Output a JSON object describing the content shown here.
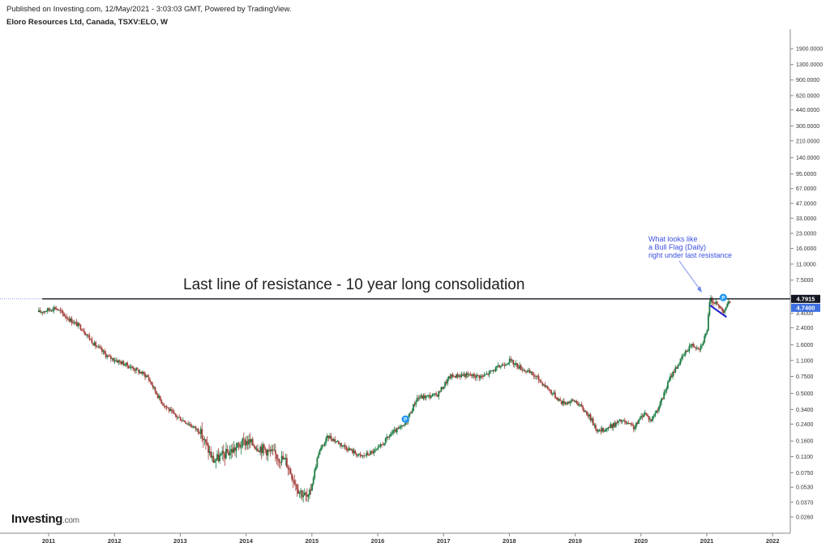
{
  "header": {
    "published": "Published on Investing.com, 12/May/2021 - 3:03:03 GMT, Powered by TradingView.",
    "symbol": "Eloro Resources Ltd, Canada, TSXV:ELO, W"
  },
  "logo": {
    "name": "Investing",
    "suffix": ".com"
  },
  "chart_data": {
    "type": "candlestick",
    "y_scale": "log",
    "ylim": [
      0.021,
      2700
    ],
    "x_ticks": [
      "2011",
      "2012",
      "2013",
      "2014",
      "2015",
      "2016",
      "2017",
      "2018",
      "2019",
      "2020",
      "2021",
      "2022"
    ],
    "y_ticks": [
      {
        "value": 1900,
        "label": "1900.0000"
      },
      {
        "value": 1300,
        "label": "1300.0000"
      },
      {
        "value": 900,
        "label": "900.0000"
      },
      {
        "value": 620,
        "label": "620.0000"
      },
      {
        "value": 440,
        "label": "440.0000"
      },
      {
        "value": 300,
        "label": "300.0000"
      },
      {
        "value": 210,
        "label": "210.0000"
      },
      {
        "value": 140,
        "label": "140.0000"
      },
      {
        "value": 95,
        "label": "95.0000"
      },
      {
        "value": 67,
        "label": "67.0000"
      },
      {
        "value": 47,
        "label": "47.0000"
      },
      {
        "value": 33,
        "label": "33.0000"
      },
      {
        "value": 23,
        "label": "23.0000"
      },
      {
        "value": 16,
        "label": "16.0000"
      },
      {
        "value": 11,
        "label": "11.0000"
      },
      {
        "value": 7.5,
        "label": "7.5000"
      },
      {
        "value": 3.4,
        "label": "3.4000"
      },
      {
        "value": 2.4,
        "label": "2.4000"
      },
      {
        "value": 1.6,
        "label": "1.6000"
      },
      {
        "value": 1.1,
        "label": "1.1000"
      },
      {
        "value": 0.75,
        "label": "0.7500"
      },
      {
        "value": 0.5,
        "label": "0.5000"
      },
      {
        "value": 0.34,
        "label": "0.3400"
      },
      {
        "value": 0.24,
        "label": "0.2400"
      },
      {
        "value": 0.16,
        "label": "0.1600"
      },
      {
        "value": 0.11,
        "label": "0.1100"
      },
      {
        "value": 0.075,
        "label": "0.0750"
      },
      {
        "value": 0.053,
        "label": "0.0530"
      },
      {
        "value": 0.037,
        "label": "0.0370"
      },
      {
        "value": 0.026,
        "label": "0.0260"
      }
    ],
    "price_path": [
      {
        "t": 2010.85,
        "v": 3.5
      },
      {
        "t": 2011.0,
        "v": 3.7
      },
      {
        "t": 2011.1,
        "v": 3.9
      },
      {
        "t": 2011.3,
        "v": 3.0
      },
      {
        "t": 2011.5,
        "v": 2.4
      },
      {
        "t": 2011.7,
        "v": 1.6
      },
      {
        "t": 2011.9,
        "v": 1.2
      },
      {
        "t": 2012.1,
        "v": 1.05
      },
      {
        "t": 2012.3,
        "v": 0.9
      },
      {
        "t": 2012.5,
        "v": 0.75
      },
      {
        "t": 2012.7,
        "v": 0.42
      },
      {
        "t": 2012.9,
        "v": 0.3
      },
      {
        "t": 2013.1,
        "v": 0.25
      },
      {
        "t": 2013.3,
        "v": 0.2
      },
      {
        "t": 2013.5,
        "v": 0.1
      },
      {
        "t": 2013.8,
        "v": 0.13
      },
      {
        "t": 2014.0,
        "v": 0.16
      },
      {
        "t": 2014.3,
        "v": 0.13
      },
      {
        "t": 2014.6,
        "v": 0.1
      },
      {
        "t": 2014.8,
        "v": 0.05
      },
      {
        "t": 2014.95,
        "v": 0.04
      },
      {
        "t": 2015.1,
        "v": 0.12
      },
      {
        "t": 2015.25,
        "v": 0.18
      },
      {
        "t": 2015.5,
        "v": 0.14
      },
      {
        "t": 2015.75,
        "v": 0.11
      },
      {
        "t": 2016.0,
        "v": 0.13
      },
      {
        "t": 2016.2,
        "v": 0.19
      },
      {
        "t": 2016.4,
        "v": 0.23
      },
      {
        "t": 2016.6,
        "v": 0.45
      },
      {
        "t": 2016.9,
        "v": 0.48
      },
      {
        "t": 2017.1,
        "v": 0.75
      },
      {
        "t": 2017.3,
        "v": 0.78
      },
      {
        "t": 2017.6,
        "v": 0.75
      },
      {
        "t": 2017.85,
        "v": 0.95
      },
      {
        "t": 2018.0,
        "v": 1.1
      },
      {
        "t": 2018.2,
        "v": 0.9
      },
      {
        "t": 2018.4,
        "v": 0.75
      },
      {
        "t": 2018.6,
        "v": 0.55
      },
      {
        "t": 2018.8,
        "v": 0.4
      },
      {
        "t": 2019.0,
        "v": 0.42
      },
      {
        "t": 2019.2,
        "v": 0.3
      },
      {
        "t": 2019.35,
        "v": 0.2
      },
      {
        "t": 2019.5,
        "v": 0.22
      },
      {
        "t": 2019.7,
        "v": 0.26
      },
      {
        "t": 2019.9,
        "v": 0.22
      },
      {
        "t": 2020.05,
        "v": 0.32
      },
      {
        "t": 2020.15,
        "v": 0.26
      },
      {
        "t": 2020.3,
        "v": 0.4
      },
      {
        "t": 2020.45,
        "v": 0.75
      },
      {
        "t": 2020.6,
        "v": 1.1
      },
      {
        "t": 2020.75,
        "v": 1.6
      },
      {
        "t": 2020.9,
        "v": 1.5
      },
      {
        "t": 2021.0,
        "v": 2.2
      },
      {
        "t": 2021.05,
        "v": 4.8
      },
      {
        "t": 2021.15,
        "v": 4.2
      },
      {
        "t": 2021.25,
        "v": 3.6
      },
      {
        "t": 2021.35,
        "v": 4.5
      }
    ],
    "resistance_level": 4.7915,
    "markers": [
      {
        "t": 2016.42,
        "v": 0.27,
        "label": "P"
      },
      {
        "t": 2021.25,
        "v": 4.95,
        "label": "P"
      }
    ],
    "last_price": {
      "label": "4.7915",
      "value": 4.7915
    },
    "close_price": {
      "label": "4.7400",
      "value": 4.74
    },
    "annotations": {
      "title": "Last line of resistance - 10 year long consolidation",
      "note_lines": [
        "What looks like",
        "a Bull Flag (Daily)",
        "right under last resistance"
      ]
    },
    "colors": {
      "up": "#26a69a",
      "up_dark": "#1e7d45",
      "down": "#a3403b",
      "resistance": "#131722",
      "trend": "#1a1acc",
      "badge_last": "#131722",
      "badge_close": "#3d6fe0",
      "marker": "#2196f3"
    }
  }
}
